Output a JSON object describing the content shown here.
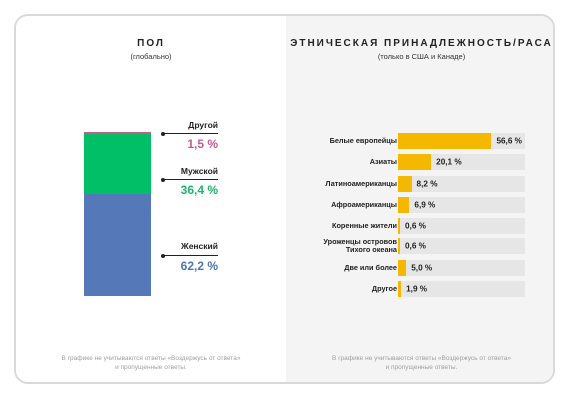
{
  "gender": {
    "title": "ПОЛ",
    "subtitle": "(глобально)",
    "footnote_line1": "В графике не учитываются ответы «Воздержусь от ответа»",
    "footnote_line2": "и пропущенные ответы."
  },
  "ethnicity": {
    "title": "ЭТНИЧЕСКАЯ ПРИНАДЛЕЖНОСТЬ/РАСА",
    "subtitle": "(только в США и Канаде)",
    "footnote_line1": "В графике не учитываются ответы «Воздержусь от ответа»",
    "footnote_line2": "и пропущенные ответы."
  },
  "chart_data": [
    {
      "type": "bar",
      "stacked": true,
      "title": "ПОЛ",
      "subtitle": "(глобально)",
      "categories": [
        "Другой",
        "Мужской",
        "Женский"
      ],
      "values": [
        1.5,
        36.4,
        62.2
      ],
      "value_labels": [
        "1,5 %",
        "36,4 %",
        "62,2 %"
      ],
      "colors": [
        "#c75b8f",
        "#00bf66",
        "#5579b8"
      ],
      "label_colors": [
        "#c75b8f",
        "#1db56a",
        "#4f73b3"
      ],
      "ylim": [
        0,
        100
      ]
    },
    {
      "type": "bar",
      "orientation": "horizontal",
      "title": "ЭТНИЧЕСКАЯ ПРИНАДЛЕЖНОСТЬ/РАСА",
      "subtitle": "(только в США и Канаде)",
      "categories": [
        "Белые европейцы",
        "Азиаты",
        "Латиноамериканцы",
        "Афроамериканцы",
        "Коренные жители",
        "Уроженцы островов Тихого океана",
        "Две или более",
        "Другое"
      ],
      "category_lines": [
        [
          "Белые европейцы"
        ],
        [
          "Азиаты"
        ],
        [
          "Латиноамериканцы"
        ],
        [
          "Афроамериканцы"
        ],
        [
          "Коренные жители"
        ],
        [
          "Уроженцы островов",
          "Тихого океана"
        ],
        [
          "Две или более"
        ],
        [
          "Другое"
        ]
      ],
      "values": [
        56.6,
        20.1,
        8.2,
        6.9,
        0.6,
        0.6,
        5.0,
        1.9
      ],
      "value_labels": [
        "56,6 %",
        "20,1 %",
        "8,2 %",
        "6,9 %",
        "0,6 %",
        "0,6 %",
        "5,0 %",
        "1,9 %"
      ],
      "bar_color": "#f5b800",
      "track_color": "#e6e6e6",
      "xlim": [
        0,
        100
      ]
    }
  ]
}
